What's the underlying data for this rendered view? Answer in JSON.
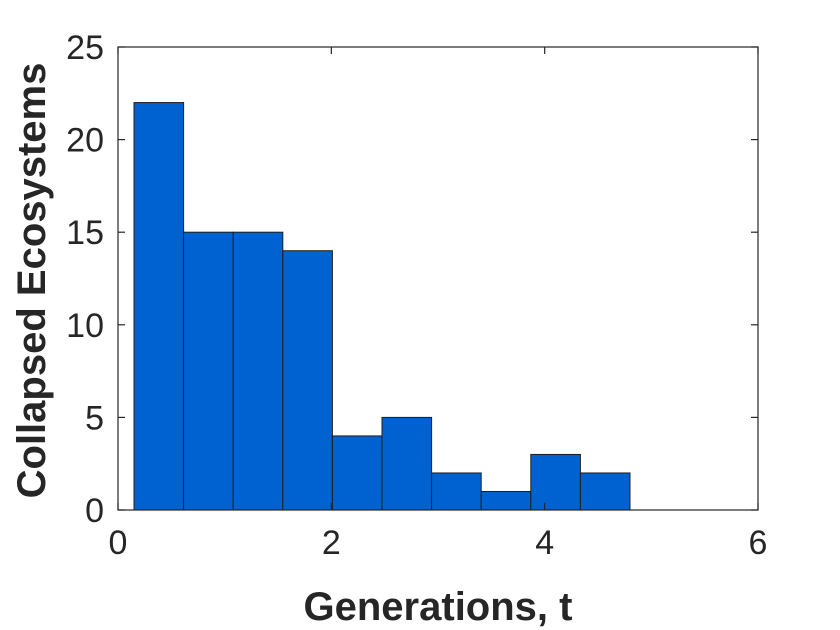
{
  "chart_data": {
    "type": "bar",
    "subtype": "histogram",
    "xlabel": "Generations, t",
    "ylabel": "Collapsed Ecosystems",
    "xlim": [
      0,
      6
    ],
    "ylim": [
      0,
      25
    ],
    "xticks": [
      0,
      2,
      4,
      6
    ],
    "yticks": [
      0,
      5,
      10,
      15,
      20,
      25
    ],
    "bin_edges": [
      0.15,
      0.615,
      1.08,
      1.545,
      2.01,
      2.475,
      2.94,
      3.405,
      3.87,
      4.335,
      4.8
    ],
    "values": [
      22,
      15,
      15,
      14,
      4,
      5,
      2,
      1,
      3,
      2
    ],
    "bar_color": "#0061d1",
    "edge_color": "#1f1f1f",
    "grid": false,
    "box": true
  }
}
